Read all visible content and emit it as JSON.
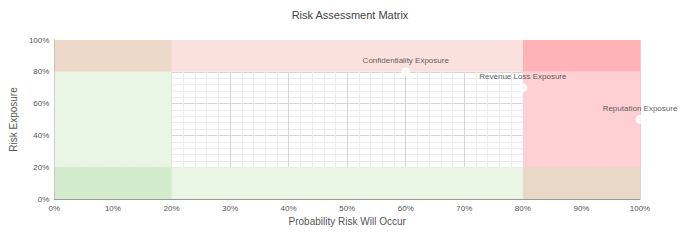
{
  "chart_data": {
    "type": "scatter",
    "title": "Risk Assessment Matrix",
    "x_label": "Probability Risk Will Occur",
    "y_label": "Risk Exposure",
    "x": [
      60,
      80,
      100
    ],
    "values": [
      80,
      70,
      50
    ],
    "labels": [
      "Confidentiality Exposure",
      "Revenue Loss Exposure",
      "Reputation Exposure"
    ],
    "colors": [
      "#8b1a1a",
      "#8b1a1a",
      "#e8a33c"
    ],
    "marker": "emptyCircle",
    "grid": true,
    "xlim": [
      0,
      100
    ],
    "xticks": [
      {
        "value": 0,
        "label": "0%"
      },
      {
        "value": 10,
        "label": "10%"
      },
      {
        "value": 20,
        "label": "20%"
      },
      {
        "value": 30,
        "label": "30%"
      },
      {
        "value": 40,
        "label": "40%"
      },
      {
        "value": 50,
        "label": "50%"
      },
      {
        "value": 60,
        "label": "60%"
      },
      {
        "value": 70,
        "label": "70%"
      },
      {
        "value": 80,
        "label": "80%"
      },
      {
        "value": 90,
        "label": "90%"
      },
      {
        "value": 100,
        "label": "100%"
      }
    ],
    "ylim": [
      0,
      100
    ],
    "yticks": [
      {
        "value": 0,
        "label": "0%"
      },
      {
        "value": 20,
        "label": "20%"
      },
      {
        "value": 40,
        "label": "40%"
      },
      {
        "value": 60,
        "label": "60%"
      },
      {
        "value": 80,
        "label": "80%"
      },
      {
        "value": 100,
        "label": "100%"
      }
    ],
    "zones": [
      {
        "x": [
          0,
          20
        ],
        "y": [
          0,
          20
        ],
        "color": "#d3ebcc"
      },
      {
        "x": [
          20,
          80
        ],
        "y": [
          0,
          20
        ],
        "color": "#e9f6e4"
      },
      {
        "x": [
          0,
          20
        ],
        "y": [
          20,
          80
        ],
        "color": "#e9f6e4"
      },
      {
        "x": [
          0,
          20
        ],
        "y": [
          80,
          100
        ],
        "color": "#ecd9c9"
      },
      {
        "x": [
          20,
          80
        ],
        "y": [
          80,
          100
        ],
        "color": "#fbe1dd"
      },
      {
        "x": [
          80,
          100
        ],
        "y": [
          80,
          100
        ],
        "color": "#ffb3b8"
      },
      {
        "x": [
          80,
          100
        ],
        "y": [
          20,
          80
        ],
        "color": "#ffd0d3"
      },
      {
        "x": [
          80,
          100
        ],
        "y": [
          0,
          20
        ],
        "color": "#ead8c7"
      }
    ]
  }
}
